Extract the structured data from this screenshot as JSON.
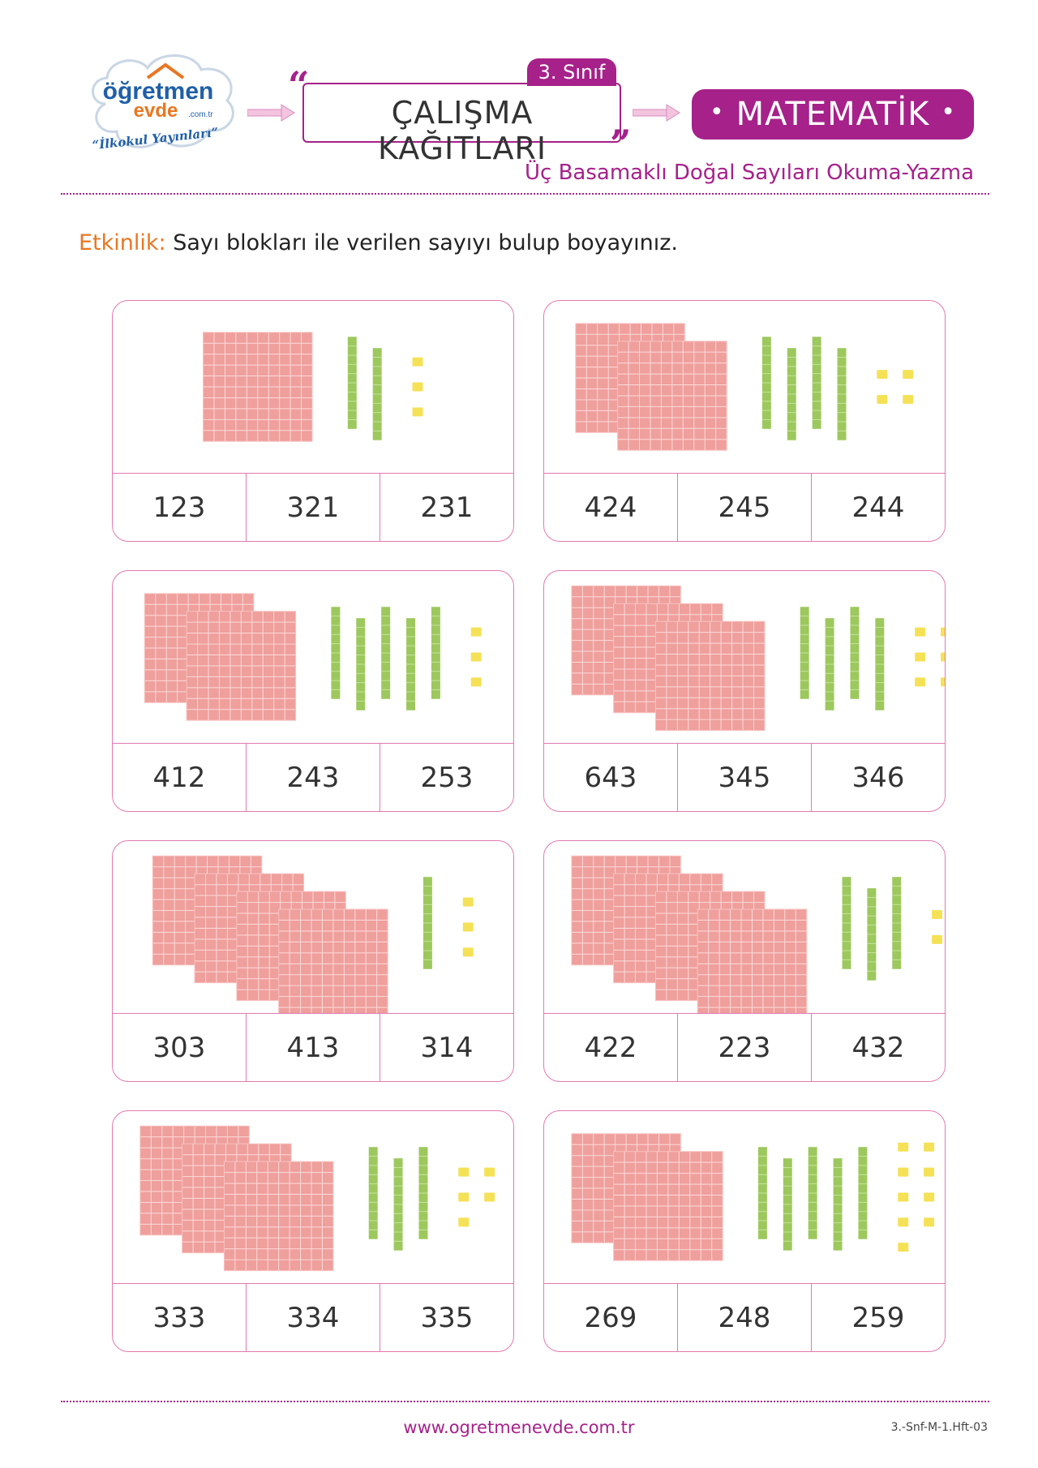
{
  "header": {
    "logo_line1": "öğretmen",
    "logo_line2": "evde",
    "logo_domain": ".com.tr",
    "logo_tagline": "“İlkokul Yayınları”",
    "grade": "3. Sınıf",
    "title": "ÇALIŞMA KAĞITLARI",
    "subject": "MATEMATİK",
    "subtitle": "Üç Basamaklı Doğal Sayıları Okuma-Yazma"
  },
  "activity": {
    "label": "Etkinlik:",
    "text": "Sayı blokları ile verilen sayıyı bulup boyayınız."
  },
  "colors": {
    "accent": "#a6218a",
    "border": "#e27ab0",
    "hundreds": "#ef9f9c",
    "tens": "#9dc85d",
    "ones": "#f5e156"
  },
  "cards": [
    {
      "hundreds": 1,
      "tens": 2,
      "ones": 3,
      "options": [
        "123",
        "321",
        "231"
      ]
    },
    {
      "hundreds": 2,
      "tens": 4,
      "ones": 4,
      "options": [
        "424",
        "245",
        "244"
      ]
    },
    {
      "hundreds": 2,
      "tens": 5,
      "ones": 3,
      "options": [
        "412",
        "243",
        "253"
      ]
    },
    {
      "hundreds": 3,
      "tens": 4,
      "ones": 6,
      "options": [
        "643",
        "345",
        "346"
      ]
    },
    {
      "hundreds": 4,
      "tens": 1,
      "ones": 3,
      "options": [
        "303",
        "413",
        "314"
      ]
    },
    {
      "hundreds": 4,
      "tens": 3,
      "ones": 2,
      "options": [
        "422",
        "223",
        "432"
      ]
    },
    {
      "hundreds": 3,
      "tens": 3,
      "ones": 5,
      "options": [
        "333",
        "334",
        "335"
      ]
    },
    {
      "hundreds": 2,
      "tens": 5,
      "ones": 9,
      "options": [
        "269",
        "248",
        "259"
      ]
    }
  ],
  "footer": {
    "url": "www.ogretmenevde.com.tr",
    "code": "3.-Snf-M-1.Hft-03"
  }
}
